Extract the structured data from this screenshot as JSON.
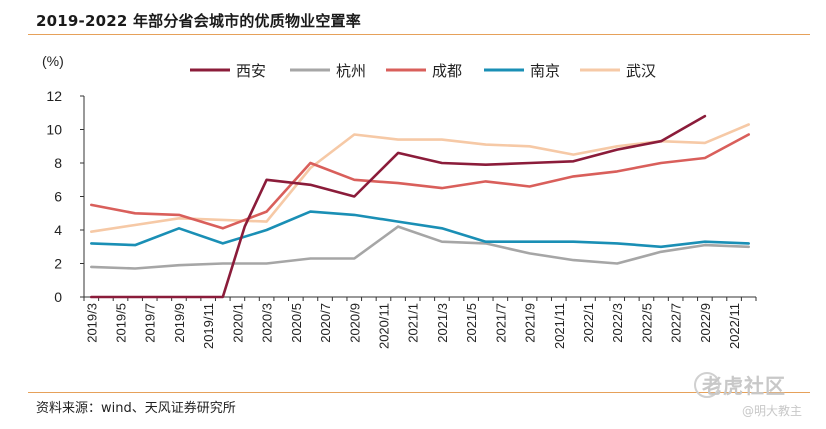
{
  "header": {
    "title": "2019-2022 年部分省会城市的优质物业空置率"
  },
  "footer": {
    "source": "资料来源：wind、天风证券研究所"
  },
  "watermark": {
    "brand": "老虎社区",
    "author": "@明大教主"
  },
  "chart_data": {
    "type": "line",
    "title": "2019-2022 年部分省会城市的优质物业空置率",
    "ylabel": "(%)",
    "xlabel": "",
    "ylim": [
      0,
      12
    ],
    "yticks": [
      0,
      2,
      4,
      6,
      8,
      10,
      12
    ],
    "grid": false,
    "legend_position": "top",
    "x": [
      "2019/3",
      "2019/4",
      "2019/5",
      "2019/6",
      "2019/7",
      "2019/8",
      "2019/9",
      "2019/10",
      "2019/11",
      "2019/12",
      "2020/1",
      "2020/2",
      "2020/3",
      "2020/4",
      "2020/5",
      "2020/6",
      "2020/7",
      "2020/8",
      "2020/9",
      "2020/10",
      "2020/11",
      "2020/12",
      "2021/1",
      "2021/2",
      "2021/3",
      "2021/4",
      "2021/5",
      "2021/6",
      "2021/7",
      "2021/8",
      "2021/9",
      "2021/10",
      "2021/11",
      "2021/12",
      "2022/1",
      "2022/2",
      "2022/3",
      "2022/4",
      "2022/5",
      "2022/6",
      "2022/7",
      "2022/8",
      "2022/9",
      "2022/10",
      "2022/11",
      "2022/12"
    ],
    "xtick_labels": [
      "2019/3",
      "2019/5",
      "2019/7",
      "2019/9",
      "2019/11",
      "2020/1",
      "2020/3",
      "2020/5",
      "2020/7",
      "2020/9",
      "2020/11",
      "2021/1",
      "2021/3",
      "2021/5",
      "2021/7",
      "2021/9",
      "2021/11",
      "2022/1",
      "2022/3",
      "2022/5",
      "2022/7",
      "2022/9",
      "2022/11"
    ],
    "series": [
      {
        "name": "西安",
        "color": "#8b1c3a",
        "points": [
          [
            0,
            0
          ],
          [
            18,
            0
          ],
          [
            21,
            4.2
          ],
          [
            24,
            7.0
          ],
          [
            30,
            6.7
          ],
          [
            36,
            6.0
          ],
          [
            42,
            8.6
          ],
          [
            48,
            8.0
          ],
          [
            54,
            7.9
          ],
          [
            60,
            8.0
          ],
          [
            66,
            8.1
          ],
          [
            72,
            8.8
          ],
          [
            78,
            9.3
          ],
          [
            84,
            10.8
          ]
        ]
      },
      {
        "name": "杭州",
        "color": "#a6a6a6",
        "points": [
          [
            0,
            1.8
          ],
          [
            6,
            1.7
          ],
          [
            12,
            1.9
          ],
          [
            18,
            2.0
          ],
          [
            24,
            2.0
          ],
          [
            30,
            2.3
          ],
          [
            36,
            2.3
          ],
          [
            42,
            4.2
          ],
          [
            48,
            3.3
          ],
          [
            54,
            3.2
          ],
          [
            60,
            2.6
          ],
          [
            66,
            2.2
          ],
          [
            72,
            2.0
          ],
          [
            78,
            2.7
          ],
          [
            84,
            3.1
          ],
          [
            90,
            3.0
          ]
        ]
      },
      {
        "name": "成都",
        "color": "#d95f5b",
        "points": [
          [
            0,
            5.5
          ],
          [
            6,
            5.0
          ],
          [
            12,
            4.9
          ],
          [
            18,
            4.1
          ],
          [
            24,
            5.1
          ],
          [
            30,
            8.0
          ],
          [
            36,
            7.0
          ],
          [
            42,
            6.8
          ],
          [
            48,
            6.5
          ],
          [
            54,
            6.9
          ],
          [
            60,
            6.6
          ],
          [
            66,
            7.2
          ],
          [
            72,
            7.5
          ],
          [
            78,
            8.0
          ],
          [
            84,
            8.3
          ],
          [
            90,
            9.7
          ]
        ]
      },
      {
        "name": "南京",
        "color": "#1a8fb5",
        "points": [
          [
            0,
            3.2
          ],
          [
            6,
            3.1
          ],
          [
            12,
            4.1
          ],
          [
            18,
            3.2
          ],
          [
            24,
            4.0
          ],
          [
            30,
            5.1
          ],
          [
            36,
            4.9
          ],
          [
            42,
            4.5
          ],
          [
            48,
            4.1
          ],
          [
            54,
            3.3
          ],
          [
            60,
            3.3
          ],
          [
            66,
            3.3
          ],
          [
            72,
            3.2
          ],
          [
            78,
            3.0
          ],
          [
            84,
            3.3
          ],
          [
            90,
            3.2
          ]
        ]
      },
      {
        "name": "武汉",
        "color": "#f6c9a6",
        "points": [
          [
            0,
            3.9
          ],
          [
            6,
            4.3
          ],
          [
            12,
            4.7
          ],
          [
            18,
            4.6
          ],
          [
            24,
            4.5
          ],
          [
            30,
            7.7
          ],
          [
            36,
            9.7
          ],
          [
            42,
            9.4
          ],
          [
            48,
            9.4
          ],
          [
            54,
            9.1
          ],
          [
            60,
            9.0
          ],
          [
            66,
            8.5
          ],
          [
            72,
            9.0
          ],
          [
            78,
            9.3
          ],
          [
            84,
            9.2
          ],
          [
            90,
            10.3
          ]
        ]
      }
    ]
  }
}
